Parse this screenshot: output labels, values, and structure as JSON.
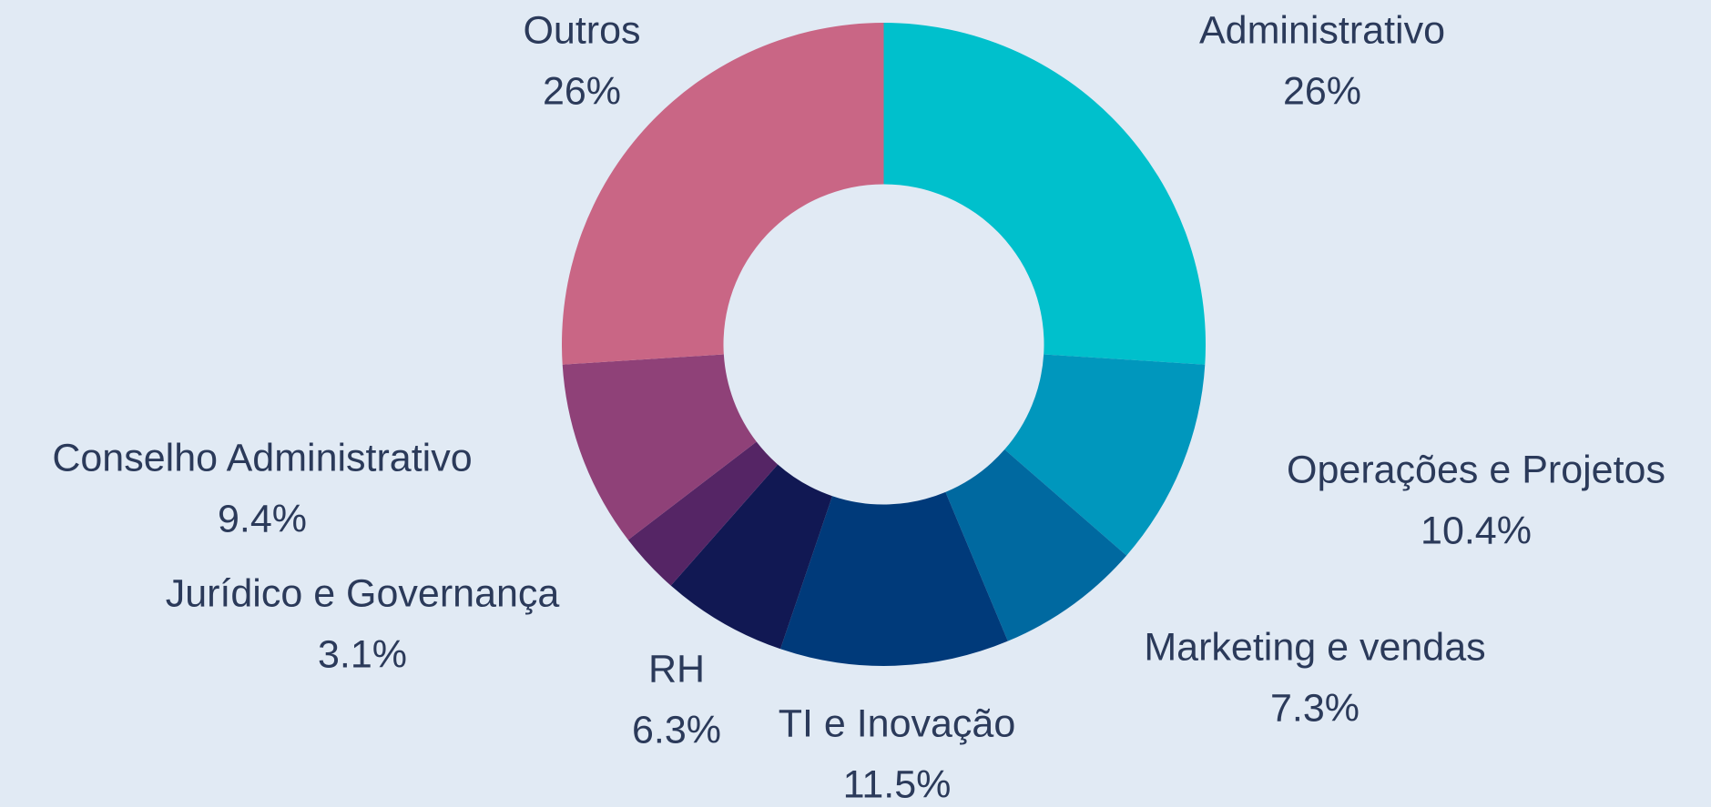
{
  "chart_data": {
    "type": "donut",
    "categories": [
      "Administrativo",
      "Operações e Projetos",
      "Marketing e vendas",
      "TI e Inovação",
      "RH",
      "Jurídico e Governança",
      "Conselho Administrativo",
      "Outros"
    ],
    "values": [
      26,
      10.4,
      7.3,
      11.5,
      6.3,
      3.1,
      9.4,
      26
    ],
    "value_labels": [
      "26%",
      "10.4%",
      "7.3%",
      "11.5%",
      "6.3%",
      "3.1%",
      "9.4%",
      "26%"
    ],
    "colors": [
      "#00c0cc",
      "#0097bd",
      "#0069a0",
      "#003a7a",
      "#111853",
      "#552565",
      "#8f4178",
      "#c96685"
    ]
  }
}
